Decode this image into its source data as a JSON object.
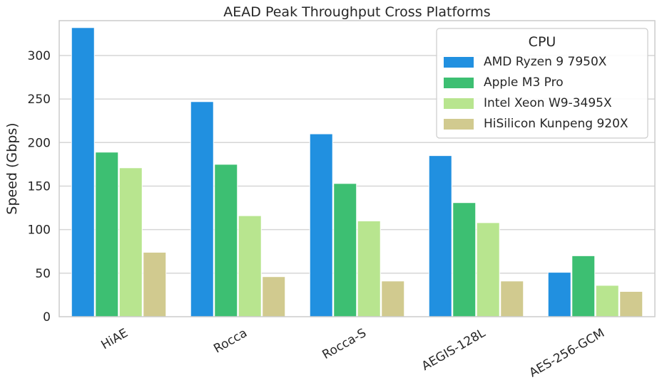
{
  "chart_data": {
    "type": "bar",
    "title": "AEAD Peak Throughput Cross Platforms",
    "xlabel": "",
    "ylabel": "Speed (Gbps)",
    "ylim": [
      0,
      340
    ],
    "yticks": [
      0,
      50,
      100,
      150,
      200,
      250,
      300
    ],
    "grid": true,
    "categories": [
      "HiAE",
      "Rocca",
      "Rocca-S",
      "AEGIS-128L",
      "AES-256-GCM"
    ],
    "legend": {
      "title": "CPU",
      "placement": "top-right"
    },
    "series": [
      {
        "name": "AMD Ryzen 9 7950X",
        "color": "#2190e0",
        "values": [
          332,
          247,
          210,
          185,
          51
        ]
      },
      {
        "name": "Apple M3 Pro",
        "color": "#3dbf72",
        "values": [
          189,
          175,
          153,
          131,
          70
        ]
      },
      {
        "name": "Intel Xeon W9-3495X",
        "color": "#b8e58f",
        "values": [
          171,
          116,
          110,
          108,
          36
        ]
      },
      {
        "name": "HiSilicon Kunpeng 920X",
        "color": "#d1ca8f",
        "values": [
          74,
          46,
          41,
          41,
          29
        ]
      }
    ]
  }
}
